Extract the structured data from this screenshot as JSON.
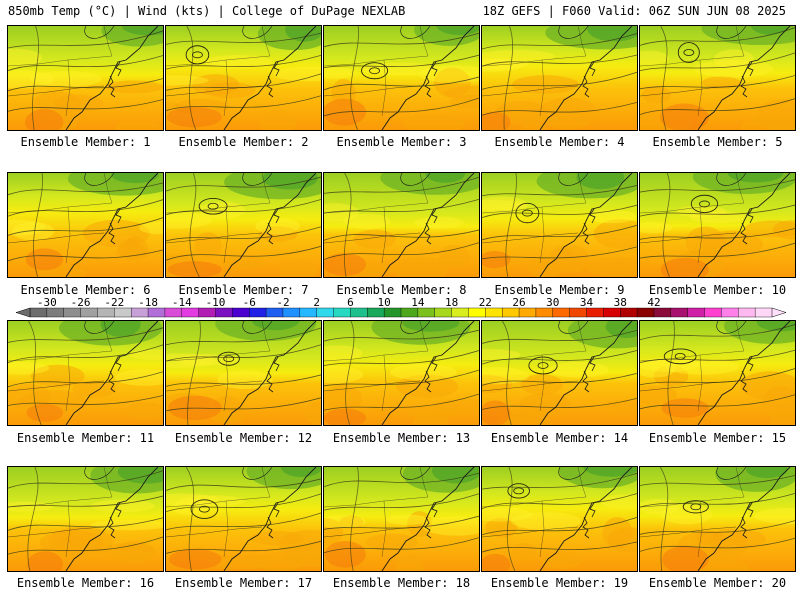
{
  "header": {
    "left": "850mb Temp (°C) | Wind (kts) | College of DuPage NEXLAB",
    "right": "18Z GEFS | F060 Valid: 06Z SUN JUN 08 2025"
  },
  "members": [
    "Ensemble Member: 1",
    "Ensemble Member: 2",
    "Ensemble Member: 3",
    "Ensemble Member: 4",
    "Ensemble Member: 5",
    "Ensemble Member: 6",
    "Ensemble Member: 7",
    "Ensemble Member: 8",
    "Ensemble Member: 9",
    "Ensemble Member: 10",
    "Ensemble Member: 11",
    "Ensemble Member: 12",
    "Ensemble Member: 13",
    "Ensemble Member: 14",
    "Ensemble Member: 15",
    "Ensemble Member: 16",
    "Ensemble Member: 17",
    "Ensemble Member: 18",
    "Ensemble Member: 19",
    "Ensemble Member: 20"
  ],
  "colorbar": {
    "labels": [
      "-30",
      "-26",
      "-22",
      "-18",
      "-14",
      "-10",
      "-6",
      "-2",
      "2",
      "6",
      "10",
      "14",
      "18",
      "22",
      "26",
      "30",
      "34",
      "38",
      "42"
    ],
    "colors": [
      "#6d6d6d",
      "#7d7d7d",
      "#8e8e8e",
      "#a0a0a0",
      "#b4b4b4",
      "#c9c9c9",
      "#c8a0d8",
      "#b26ed8",
      "#d84cd8",
      "#e23be2",
      "#b01eb4",
      "#7a10c0",
      "#4b00d0",
      "#2020e6",
      "#1e5ef0",
      "#1e90ff",
      "#23b8ff",
      "#30d8ec",
      "#28d8c0",
      "#20c08c",
      "#1aa85a",
      "#25962a",
      "#4ea81c",
      "#7cc01e",
      "#a8d81e",
      "#d8ee1e",
      "#ffff00",
      "#ffe400",
      "#ffc800",
      "#ffaa00",
      "#ff8c00",
      "#ff6a00",
      "#f04800",
      "#e81e00",
      "#d60000",
      "#b00000",
      "#8a0000",
      "#8a0a3a",
      "#a81070",
      "#d020a8",
      "#ff40d0",
      "#ff80e8",
      "#ffb8f0",
      "#ffd8f8"
    ]
  }
}
